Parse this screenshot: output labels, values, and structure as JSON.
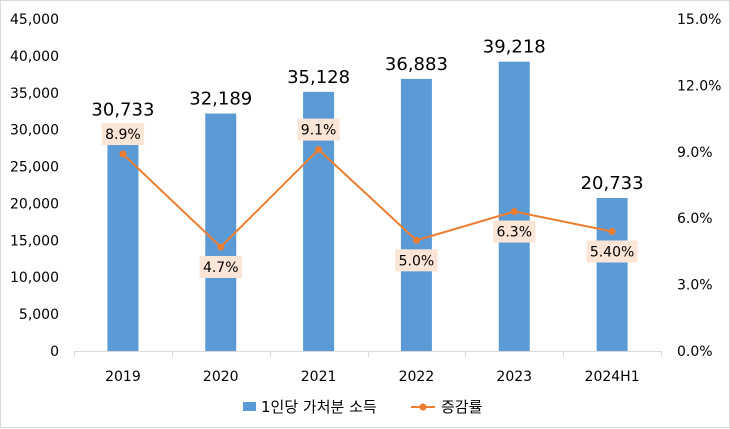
{
  "chart_data": {
    "type": "bar",
    "categories": [
      "2019",
      "2020",
      "2021",
      "2022",
      "2023",
      "2024H1"
    ],
    "series": [
      {
        "name": "1인당 가처분 소득",
        "type": "bar",
        "axis": "left",
        "color": "#5B9BD5",
        "values": [
          30733,
          32189,
          35128,
          36883,
          39218,
          20733
        ],
        "labels": [
          "30,733",
          "32,189",
          "35,128",
          "36,883",
          "39,218",
          "20,733"
        ]
      },
      {
        "name": "증감률",
        "type": "line",
        "axis": "right",
        "color": "#ED7D31",
        "values": [
          8.9,
          4.7,
          9.1,
          5.0,
          6.3,
          5.4
        ],
        "labels": [
          "8.9%",
          "4.7%",
          "9.1%",
          "5.0%",
          "6.3%",
          "5.40%"
        ]
      }
    ],
    "y_left": {
      "min": 0,
      "max": 45000,
      "ticks": [
        0,
        5000,
        10000,
        15000,
        20000,
        25000,
        30000,
        35000,
        40000,
        45000
      ],
      "tick_labels": [
        "0",
        "5,000",
        "10,000",
        "15,000",
        "20,000",
        "25,000",
        "30,000",
        "35,000",
        "40,000",
        "45,000"
      ]
    },
    "y_right": {
      "min": 0,
      "max": 15,
      "ticks": [
        0,
        3,
        6,
        9,
        12,
        15
      ],
      "tick_labels": [
        "0.0%",
        "3.0%",
        "6.0%",
        "9.0%",
        "12.0%",
        "15.0%"
      ]
    },
    "grid": false,
    "legend_position": "bottom"
  }
}
